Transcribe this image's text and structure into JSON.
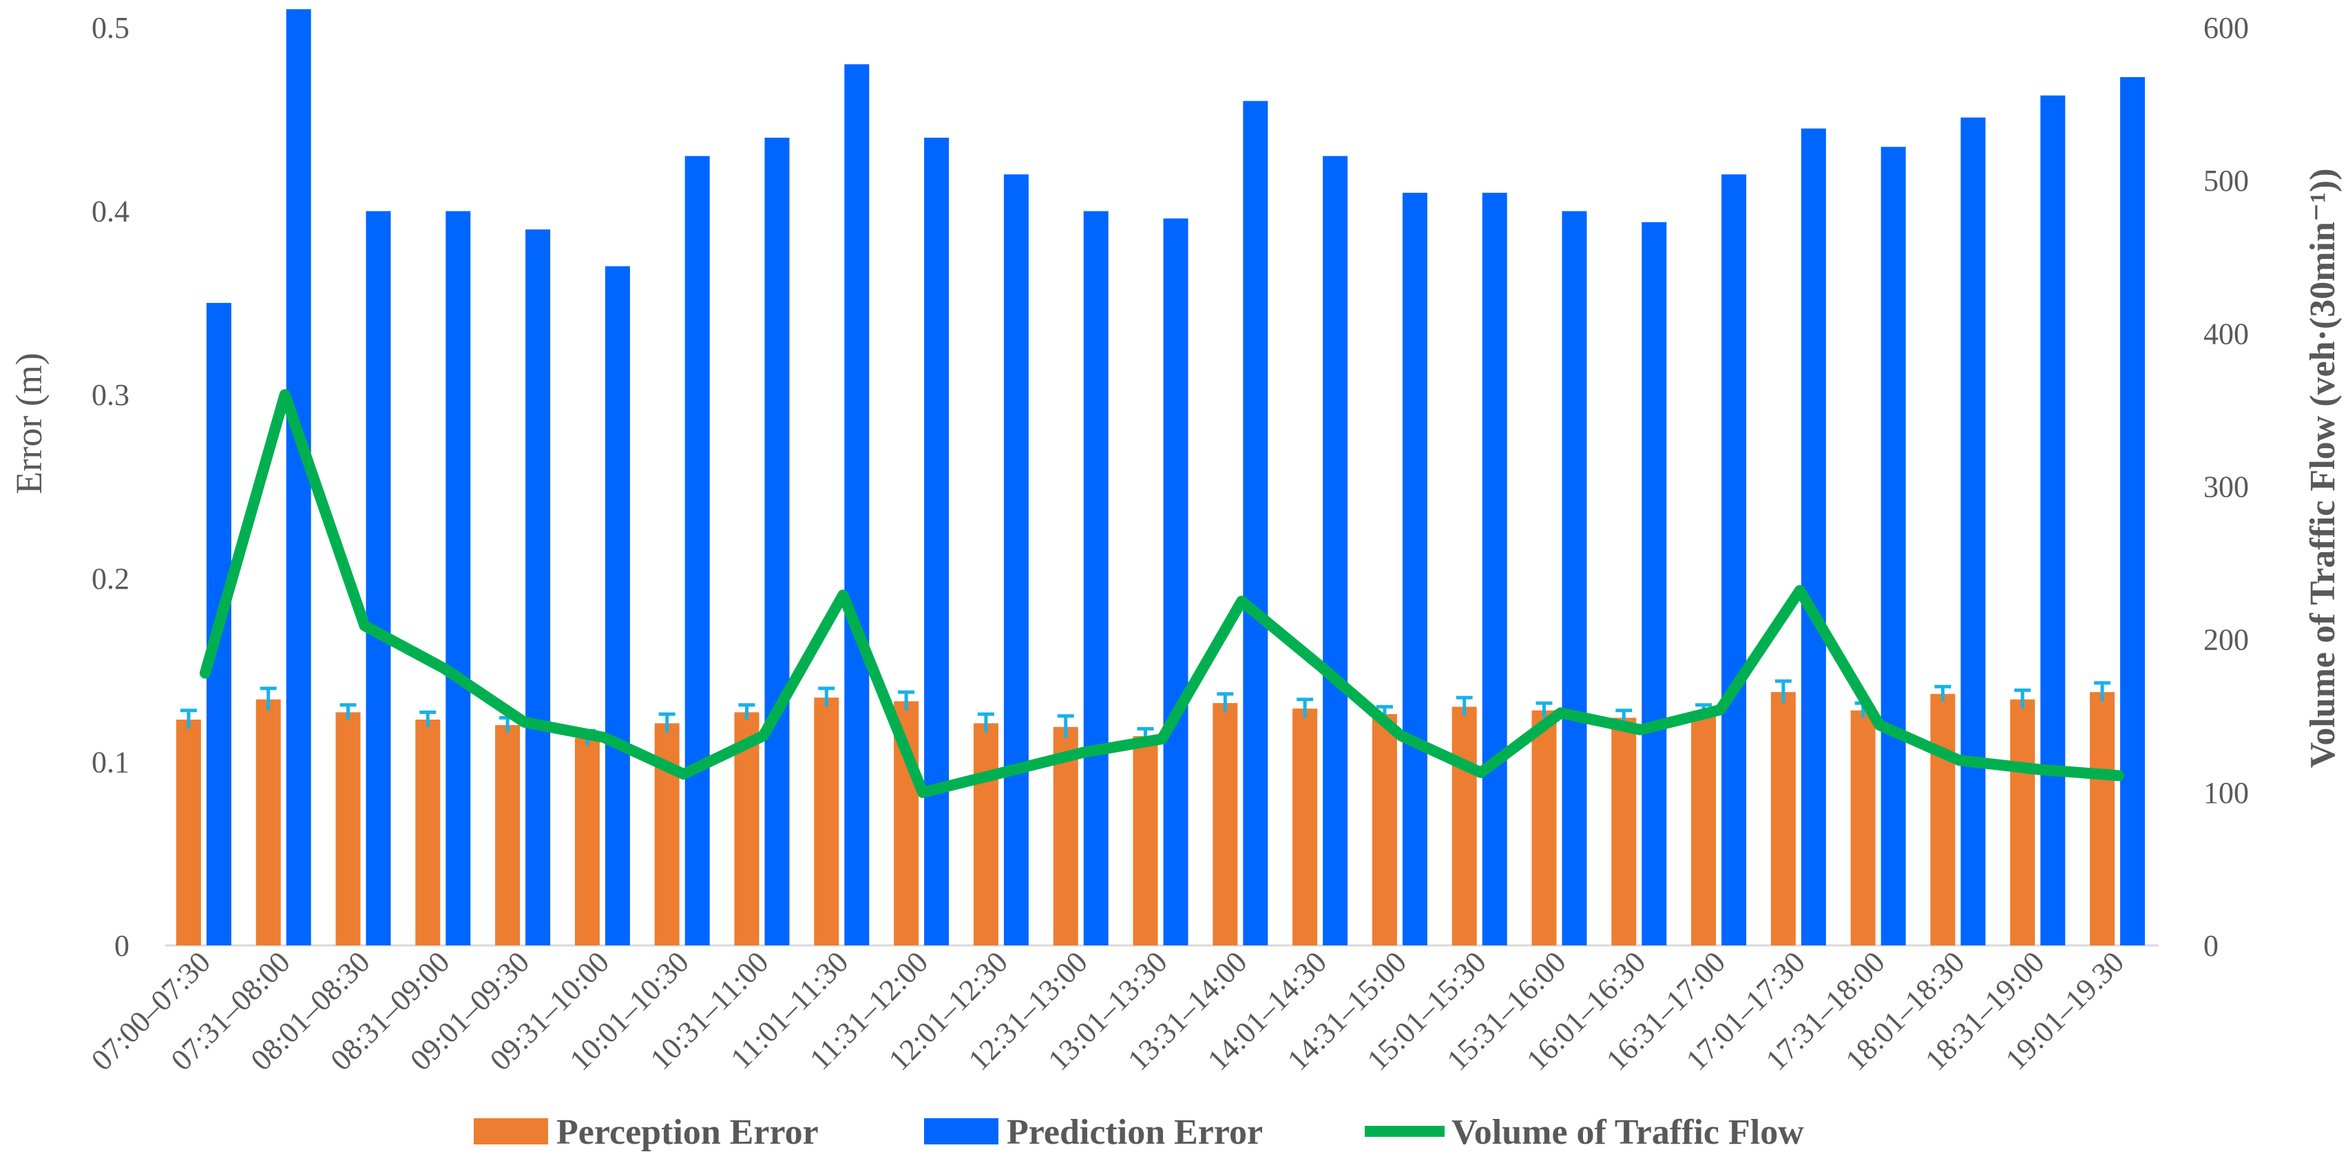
{
  "chart_data": {
    "type": "bar",
    "categories": [
      "07:00–07:30",
      "07:31–08:00",
      "08:01–08:30",
      "08:31–09:00",
      "09:01–09:30",
      "09:31–10:00",
      "10:01–10:30",
      "10:31–11:00",
      "11:01–11:30",
      "11:31–12:00",
      "12:01–12:30",
      "12:31–13:00",
      "13:01–13:30",
      "13:31–14:00",
      "14:01–14:30",
      "14:31–15:00",
      "15:01–15:30",
      "15:31–16:00",
      "16:01–16:30",
      "16:31–17:00",
      "17:01–17:30",
      "17:31–18:00",
      "18:01–18:30",
      "18:31–19:00",
      "19:01–19.30"
    ],
    "series": [
      {
        "name": "Perception Error",
        "type": "bar",
        "axis": "left",
        "color": "#ED7D31",
        "values": [
          0.123,
          0.134,
          0.127,
          0.123,
          0.12,
          0.113,
          0.121,
          0.127,
          0.135,
          0.133,
          0.121,
          0.119,
          0.114,
          0.132,
          0.129,
          0.126,
          0.13,
          0.128,
          0.124,
          0.127,
          0.138,
          0.128,
          0.137,
          0.134,
          0.138
        ],
        "error": [
          0.005,
          0.006,
          0.004,
          0.004,
          0.004,
          0.004,
          0.005,
          0.004,
          0.005,
          0.005,
          0.005,
          0.006,
          0.004,
          0.005,
          0.005,
          0.004,
          0.005,
          0.004,
          0.004,
          0.004,
          0.006,
          0.004,
          0.004,
          0.005,
          0.005
        ]
      },
      {
        "name": "Prediction Error",
        "type": "bar",
        "axis": "left",
        "color": "#0066FF",
        "values": [
          0.35,
          0.51,
          0.4,
          0.4,
          0.39,
          0.37,
          0.43,
          0.44,
          0.48,
          0.44,
          0.42,
          0.4,
          0.396,
          0.46,
          0.43,
          0.41,
          0.41,
          0.4,
          0.394,
          0.42,
          0.445,
          0.435,
          0.451,
          0.463,
          0.473
        ]
      },
      {
        "name": "Volume of Traffic Flow",
        "type": "line",
        "axis": "right",
        "color": "#00B050",
        "values": [
          178,
          360,
          209,
          181,
          146,
          136,
          112,
          137,
          229,
          100,
          113,
          126,
          135,
          225,
          182,
          137,
          113,
          152,
          141,
          154,
          232,
          144,
          121,
          115,
          111
        ]
      }
    ],
    "ylabel": "Error (m)",
    "ylabel2": "Volume of Traffic Flow (veh·(30min⁻¹))",
    "ylim": [
      0,
      0.5
    ],
    "ylim2": [
      0,
      600
    ],
    "yticks": [
      "0",
      "0.1",
      "0.2",
      "0.3",
      "0.4",
      "0.5"
    ],
    "yticks2": [
      "0",
      "100",
      "200",
      "300",
      "400",
      "500",
      "600"
    ],
    "errorbar_color": "#18B2E8",
    "grid": false,
    "legend_position": "bottom"
  }
}
